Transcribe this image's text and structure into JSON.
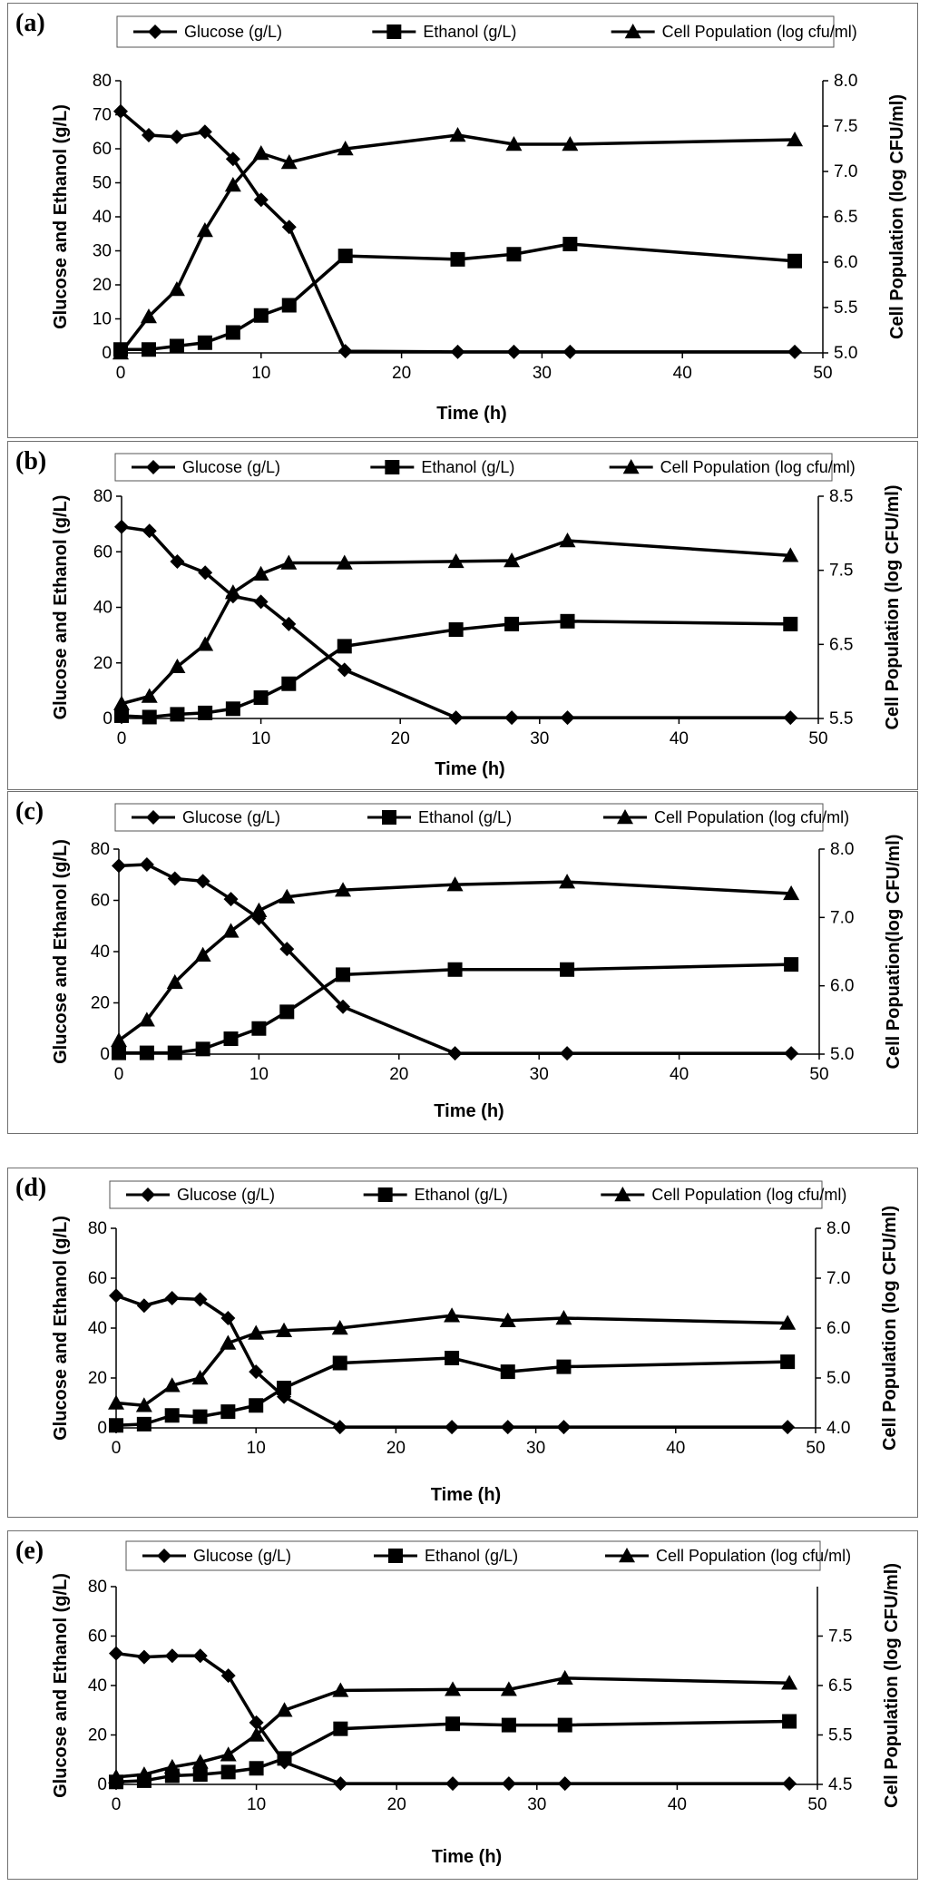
{
  "chart_data": [
    {
      "type": "line",
      "panel_label": "(a)",
      "xlabel": "Time (h)",
      "ylabel": "Glucose and Ethanol (g/L)",
      "y2label": "Cell Population  (log CFU/ml)",
      "xlim": [
        0,
        50
      ],
      "ylim": [
        0,
        80
      ],
      "y2lim": [
        5.0,
        8.0
      ],
      "xticks": [
        "0",
        "10",
        "20",
        "30",
        "40",
        "50"
      ],
      "yticks": [
        "0",
        "10",
        "20",
        "30",
        "40",
        "50",
        "60",
        "70",
        "80"
      ],
      "y2ticks": [
        "5.0",
        "5.5",
        "6.0",
        "6.5",
        "7.0",
        "7.5",
        "8.0"
      ],
      "legend_position": "top",
      "series": [
        {
          "name": "Glucose (g/L)",
          "axis": "left",
          "marker": "diamond",
          "x": [
            0,
            2,
            4,
            6,
            8,
            10,
            12,
            16,
            24,
            28,
            32,
            48
          ],
          "values": [
            71,
            64,
            63.5,
            65,
            57,
            45,
            37,
            0.5,
            0.3,
            0.3,
            0.3,
            0.3
          ]
        },
        {
          "name": "Ethanol (g/L)",
          "axis": "left",
          "marker": "square",
          "x": [
            0,
            2,
            4,
            6,
            8,
            10,
            12,
            16,
            24,
            28,
            32,
            48
          ],
          "values": [
            1,
            1,
            2,
            3,
            6,
            11,
            14,
            28.5,
            27.5,
            29,
            32,
            27
          ]
        },
        {
          "name": "Cell Population (log cfu/ml)",
          "axis": "right",
          "marker": "triangle",
          "x": [
            0,
            2,
            4,
            6,
            8,
            10,
            12,
            16,
            24,
            28,
            32,
            48
          ],
          "values": [
            5.0,
            5.4,
            5.7,
            6.35,
            6.85,
            7.2,
            7.1,
            7.25,
            7.4,
            7.3,
            7.3,
            7.35
          ]
        }
      ]
    },
    {
      "type": "line",
      "panel_label": "(b)",
      "xlabel": "Time (h)",
      "ylabel": "Glucose and Ethanol (g/L)",
      "y2label": "Cell Population (log CFU/ml)",
      "xlim": [
        0,
        50
      ],
      "ylim": [
        0,
        80
      ],
      "y2lim": [
        5.5,
        8.5
      ],
      "xticks": [
        "0",
        "10",
        "20",
        "30",
        "40",
        "50"
      ],
      "yticks": [
        "0",
        "20",
        "40",
        "60",
        "80"
      ],
      "y2ticks": [
        "5.5",
        "6.5",
        "7.5",
        "8.5"
      ],
      "legend_position": "top",
      "series": [
        {
          "name": "Glucose (g/L)",
          "axis": "left",
          "marker": "diamond",
          "x": [
            0,
            2,
            4,
            6,
            8,
            10,
            12,
            16,
            24,
            28,
            32,
            48
          ],
          "values": [
            69,
            67.5,
            56.5,
            52.5,
            44,
            42,
            34,
            17.5,
            0.3,
            0.3,
            0.3,
            0.3
          ]
        },
        {
          "name": "Ethanol (g/L)",
          "axis": "left",
          "marker": "square",
          "x": [
            0,
            2,
            4,
            6,
            8,
            10,
            12,
            16,
            24,
            28,
            32,
            48
          ],
          "values": [
            1,
            0.5,
            1.5,
            2,
            3.5,
            7.5,
            12.5,
            26,
            32,
            34,
            35,
            34
          ]
        },
        {
          "name": "Cell Population (log cfu/ml)",
          "axis": "right",
          "marker": "triangle",
          "x": [
            0,
            2,
            4,
            6,
            8,
            10,
            12,
            16,
            24,
            28,
            32,
            48
          ],
          "values": [
            5.7,
            5.8,
            6.2,
            6.5,
            7.2,
            7.45,
            7.6,
            7.6,
            7.62,
            7.63,
            7.9,
            7.7
          ]
        }
      ]
    },
    {
      "type": "line",
      "panel_label": "(c)",
      "xlabel": "Time (h)",
      "ylabel": "Glucose and Ethanol (g/L)",
      "y2label": "Cell Popuation(log CFU/ml)",
      "xlim": [
        0,
        50
      ],
      "ylim": [
        0,
        80
      ],
      "y2lim": [
        5.0,
        8.0
      ],
      "xticks": [
        "0",
        "10",
        "20",
        "30",
        "40",
        "50"
      ],
      "yticks": [
        "0",
        "20",
        "40",
        "60",
        "80"
      ],
      "y2ticks": [
        "5.0",
        "6.0",
        "7.0",
        "8.0"
      ],
      "legend_position": "top",
      "series": [
        {
          "name": "Glucose (g/L)",
          "axis": "left",
          "marker": "diamond",
          "x": [
            0,
            2,
            4,
            6,
            8,
            10,
            12,
            16,
            24,
            32,
            48
          ],
          "values": [
            73.5,
            74,
            68.5,
            67.5,
            60.5,
            53,
            41,
            18.5,
            0.3,
            0.3,
            0.3
          ]
        },
        {
          "name": "Ethanol (g/L)",
          "axis": "left",
          "marker": "square",
          "x": [
            0,
            2,
            4,
            6,
            8,
            10,
            12,
            16,
            24,
            32,
            48
          ],
          "values": [
            0.5,
            0.5,
            0.5,
            2,
            6,
            10,
            16.5,
            31,
            33,
            33,
            35
          ]
        },
        {
          "name": "Cell Population (log cfu/ml)",
          "axis": "right",
          "marker": "triangle",
          "x": [
            0,
            2,
            4,
            6,
            8,
            10,
            12,
            16,
            24,
            32,
            48
          ],
          "values": [
            5.2,
            5.5,
            6.05,
            6.45,
            6.8,
            7.1,
            7.3,
            7.4,
            7.48,
            7.52,
            7.35
          ]
        }
      ]
    },
    {
      "type": "line",
      "panel_label": "(d)",
      "xlabel": "Time (h)",
      "ylabel": "Glucose and Ethanol (g/L)",
      "y2label": "Cell Population (log CFU/ml)",
      "xlim": [
        0,
        50
      ],
      "ylim": [
        0,
        80
      ],
      "y2lim": [
        4.0,
        8.0
      ],
      "xticks": [
        "0",
        "10",
        "20",
        "30",
        "40",
        "50"
      ],
      "yticks": [
        "0",
        "20",
        "40",
        "60",
        "80"
      ],
      "y2ticks": [
        "4.0",
        "5.0",
        "6.0",
        "7.0",
        "8.0"
      ],
      "legend_position": "top",
      "series": [
        {
          "name": "Glucose (g/L)",
          "axis": "left",
          "marker": "diamond",
          "x": [
            0,
            2,
            4,
            6,
            8,
            10,
            12,
            16,
            24,
            28,
            32,
            48
          ],
          "values": [
            53,
            49,
            52,
            51.5,
            44,
            22.5,
            12.5,
            0.3,
            0.3,
            0.3,
            0.3,
            0.3
          ]
        },
        {
          "name": "Ethanol (g/L)",
          "axis": "left",
          "marker": "square",
          "x": [
            0,
            2,
            4,
            6,
            8,
            10,
            12,
            16,
            24,
            28,
            32,
            48
          ],
          "values": [
            1,
            1.5,
            5,
            4.5,
            6.5,
            9,
            16,
            26,
            28,
            22.5,
            24.5,
            26.5
          ]
        },
        {
          "name": "Cell Population (log cfu/ml)",
          "axis": "right",
          "marker": "triangle",
          "x": [
            0,
            2,
            4,
            6,
            8,
            10,
            12,
            16,
            24,
            28,
            32,
            48
          ],
          "values": [
            4.5,
            4.45,
            4.85,
            5.0,
            5.7,
            5.9,
            5.95,
            6.0,
            6.25,
            6.15,
            6.2,
            6.1
          ]
        }
      ]
    },
    {
      "type": "line",
      "panel_label": "(e)",
      "xlabel": "Time (h)",
      "ylabel": "Glucose and Ethanol (g/L)",
      "y2label": "Cell Population (log CFU/ml)",
      "xlim": [
        0,
        50
      ],
      "ylim": [
        0,
        80
      ],
      "y2lim": [
        4.5,
        8.5
      ],
      "xticks": [
        "0",
        "10",
        "20",
        "30",
        "40",
        "50"
      ],
      "yticks": [
        "0",
        "20",
        "40",
        "60",
        "80"
      ],
      "y2ticks": [
        "4.5",
        "5.5",
        "6.5",
        "7.5"
      ],
      "legend_position": "top",
      "series": [
        {
          "name": "Glucose (g/L)",
          "axis": "left",
          "marker": "diamond",
          "x": [
            0,
            2,
            4,
            6,
            8,
            10,
            12,
            16,
            24,
            28,
            32,
            48
          ],
          "values": [
            53,
            51.5,
            52,
            52,
            44,
            25,
            9,
            0.3,
            0.3,
            0.3,
            0.3,
            0.3
          ]
        },
        {
          "name": "Ethanol (g/L)",
          "axis": "left",
          "marker": "square",
          "x": [
            0,
            2,
            4,
            6,
            8,
            10,
            12,
            16,
            24,
            28,
            32,
            48
          ],
          "values": [
            1,
            1.5,
            3.5,
            4,
            5,
            6.5,
            10.5,
            22.5,
            24.5,
            24,
            24,
            25.5
          ]
        },
        {
          "name": "Cell Population (log cfu/ml)",
          "axis": "right",
          "marker": "triangle",
          "x": [
            0,
            2,
            4,
            6,
            8,
            10,
            12,
            16,
            24,
            28,
            32,
            48
          ],
          "values": [
            4.65,
            4.7,
            4.85,
            4.95,
            5.1,
            5.5,
            6.0,
            6.4,
            6.42,
            6.42,
            6.65,
            6.55
          ]
        }
      ]
    }
  ]
}
